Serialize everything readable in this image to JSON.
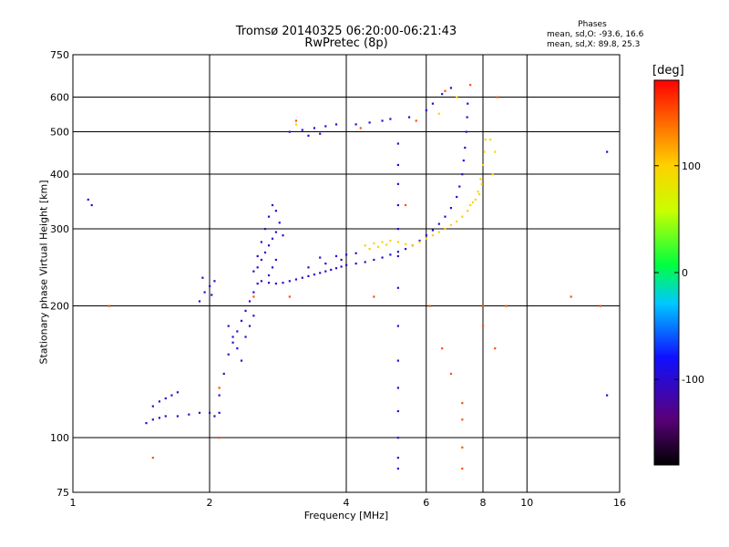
{
  "header": {
    "title_line1": "Tromsø 20140325 06:20:00-06:21:43",
    "title_line2": "RwPretec (8p)"
  },
  "phase_box": {
    "title": "Phases",
    "o_line": "mean, sd,O: -93.6, 16.6",
    "x_line": "mean, sd,X:  89.8, 25.3"
  },
  "colorbar": {
    "unit": "[deg]",
    "min": -180,
    "max": 180,
    "ticks": [
      100,
      0,
      -100
    ],
    "tick_labels": [
      "100",
      "0",
      "-100"
    ]
  },
  "chart_data": {
    "type": "scatter",
    "title": "Tromsø 20140325 06:20:00-06:21:43",
    "subtitle": "RwPretec (8p)",
    "xlabel": "Frequency [MHz]",
    "ylabel": "Stationary phase Virtual Height [km]",
    "x_scale": "log",
    "y_scale": "log",
    "xlim": [
      1,
      16
    ],
    "ylim": [
      75,
      750
    ],
    "x_ticks": [
      1,
      2,
      4,
      6,
      8,
      10,
      16
    ],
    "x_tick_labels": [
      "1",
      "2",
      "4",
      "6",
      "8",
      "10",
      "16"
    ],
    "y_ticks": [
      75,
      100,
      200,
      300,
      400,
      500,
      600,
      750
    ],
    "y_tick_labels": [
      "75",
      "100",
      "200",
      "300",
      "400",
      "500",
      "600",
      "750"
    ],
    "grid": true,
    "series": [
      {
        "values_phase_deg": -100,
        "points": [
          [
            1.45,
            108
          ],
          [
            1.5,
            110
          ],
          [
            1.55,
            111
          ],
          [
            1.6,
            112
          ],
          [
            1.7,
            112
          ],
          [
            1.8,
            113
          ],
          [
            1.9,
            114
          ],
          [
            2.0,
            114
          ],
          [
            2.05,
            112
          ],
          [
            2.1,
            114
          ],
          [
            1.5,
            118
          ],
          [
            1.55,
            121
          ],
          [
            1.6,
            123
          ],
          [
            1.65,
            125
          ],
          [
            1.7,
            127
          ],
          [
            1.9,
            205
          ],
          [
            1.95,
            215
          ],
          [
            2.0,
            222
          ],
          [
            2.05,
            228
          ],
          [
            1.93,
            232
          ],
          [
            2.02,
            212
          ],
          [
            2.1,
            125
          ],
          [
            2.15,
            140
          ],
          [
            2.2,
            155
          ],
          [
            2.25,
            165
          ],
          [
            2.3,
            175
          ],
          [
            2.35,
            185
          ],
          [
            2.4,
            195
          ],
          [
            2.45,
            205
          ],
          [
            2.5,
            215
          ],
          [
            2.55,
            225
          ],
          [
            2.2,
            180
          ],
          [
            2.25,
            170
          ],
          [
            2.3,
            160
          ],
          [
            2.35,
            150
          ],
          [
            2.4,
            170
          ],
          [
            2.45,
            180
          ],
          [
            2.5,
            190
          ],
          [
            2.5,
            240
          ],
          [
            2.55,
            260
          ],
          [
            2.6,
            280
          ],
          [
            2.65,
            300
          ],
          [
            2.7,
            320
          ],
          [
            2.75,
            340
          ],
          [
            2.8,
            330
          ],
          [
            2.85,
            310
          ],
          [
            2.9,
            290
          ],
          [
            2.55,
            245
          ],
          [
            2.6,
            255
          ],
          [
            2.65,
            265
          ],
          [
            2.7,
            275
          ],
          [
            2.75,
            285
          ],
          [
            2.8,
            295
          ],
          [
            2.7,
            235
          ],
          [
            2.75,
            245
          ],
          [
            2.8,
            255
          ],
          [
            2.6,
            228
          ],
          [
            2.7,
            226
          ],
          [
            2.8,
            225
          ],
          [
            2.9,
            226
          ],
          [
            3.0,
            228
          ],
          [
            3.1,
            230
          ],
          [
            3.2,
            232
          ],
          [
            3.3,
            234
          ],
          [
            3.4,
            236
          ],
          [
            3.5,
            238
          ],
          [
            3.6,
            240
          ],
          [
            3.7,
            242
          ],
          [
            3.8,
            244
          ],
          [
            3.9,
            246
          ],
          [
            4.0,
            248
          ],
          [
            4.2,
            250
          ],
          [
            4.4,
            252
          ],
          [
            4.6,
            255
          ],
          [
            4.8,
            258
          ],
          [
            5.0,
            262
          ],
          [
            5.2,
            266
          ],
          [
            5.4,
            270
          ],
          [
            5.6,
            275
          ],
          [
            5.8,
            282
          ],
          [
            6.0,
            290
          ],
          [
            6.2,
            298
          ],
          [
            6.4,
            308
          ],
          [
            6.6,
            320
          ],
          [
            6.8,
            335
          ],
          [
            7.0,
            355
          ],
          [
            7.1,
            375
          ],
          [
            7.2,
            400
          ],
          [
            7.25,
            430
          ],
          [
            7.3,
            460
          ],
          [
            7.35,
            500
          ],
          [
            7.38,
            540
          ],
          [
            7.4,
            580
          ],
          [
            3.5,
            258
          ],
          [
            3.8,
            260
          ],
          [
            4.0,
            262
          ],
          [
            4.2,
            264
          ],
          [
            3.3,
            245
          ],
          [
            3.6,
            250
          ],
          [
            3.9,
            255
          ],
          [
            5.2,
            300
          ],
          [
            5.2,
            260
          ],
          [
            5.2,
            220
          ],
          [
            5.2,
            180
          ],
          [
            5.2,
            150
          ],
          [
            5.2,
            130
          ],
          [
            5.2,
            115
          ],
          [
            5.2,
            100
          ],
          [
            5.2,
            90
          ],
          [
            5.2,
            85
          ],
          [
            5.2,
            340
          ],
          [
            5.2,
            380
          ],
          [
            5.2,
            420
          ],
          [
            5.2,
            470
          ],
          [
            3.0,
            500
          ],
          [
            3.2,
            505
          ],
          [
            3.4,
            510
          ],
          [
            3.6,
            515
          ],
          [
            3.8,
            520
          ],
          [
            3.5,
            495
          ],
          [
            3.3,
            490
          ],
          [
            4.2,
            520
          ],
          [
            4.5,
            525
          ],
          [
            4.8,
            530
          ],
          [
            5.0,
            535
          ],
          [
            5.5,
            540
          ],
          [
            6.0,
            560
          ],
          [
            6.2,
            580
          ],
          [
            6.5,
            610
          ],
          [
            6.8,
            630
          ],
          [
            15.0,
            450
          ],
          [
            15.0,
            125
          ],
          [
            1.08,
            350
          ],
          [
            1.1,
            340
          ]
        ]
      },
      {
        "values_phase_deg": 100,
        "points": [
          [
            4.4,
            275
          ],
          [
            4.6,
            278
          ],
          [
            4.8,
            280
          ],
          [
            5.0,
            282
          ],
          [
            5.2,
            280
          ],
          [
            5.4,
            277
          ],
          [
            5.6,
            275
          ],
          [
            5.8,
            280
          ],
          [
            6.0,
            285
          ],
          [
            6.2,
            290
          ],
          [
            6.4,
            295
          ],
          [
            6.6,
            300
          ],
          [
            6.8,
            306
          ],
          [
            7.0,
            312
          ],
          [
            7.2,
            320
          ],
          [
            7.4,
            330
          ],
          [
            7.6,
            345
          ],
          [
            7.8,
            365
          ],
          [
            7.9,
            390
          ],
          [
            8.0,
            420
          ],
          [
            8.05,
            450
          ],
          [
            8.1,
            480
          ],
          [
            7.95,
            380
          ],
          [
            7.85,
            360
          ],
          [
            7.7,
            350
          ],
          [
            7.5,
            340
          ],
          [
            4.5,
            270
          ],
          [
            4.7,
            273
          ],
          [
            4.9,
            276
          ],
          [
            3.1,
            520
          ],
          [
            6.4,
            550
          ],
          [
            7.0,
            600
          ],
          [
            8.3,
            480
          ],
          [
            8.4,
            400
          ],
          [
            8.5,
            450
          ]
        ]
      },
      {
        "values_phase_deg": 150,
        "points": [
          [
            1.5,
            90
          ],
          [
            2.1,
            100
          ],
          [
            2.5,
            210
          ],
          [
            3.0,
            210
          ],
          [
            4.6,
            210
          ],
          [
            5.4,
            340
          ],
          [
            6.1,
            200
          ],
          [
            6.5,
            160
          ],
          [
            6.8,
            140
          ],
          [
            7.2,
            120
          ],
          [
            7.2,
            110
          ],
          [
            7.2,
            95
          ],
          [
            7.2,
            85
          ],
          [
            8.0,
            200
          ],
          [
            8.0,
            180
          ],
          [
            8.5,
            160
          ],
          [
            9.0,
            200
          ],
          [
            8.6,
            600
          ],
          [
            7.5,
            640
          ],
          [
            6.6,
            620
          ],
          [
            1.2,
            200
          ],
          [
            12.5,
            210
          ],
          [
            14.5,
            200
          ],
          [
            2.1,
            130
          ],
          [
            3.1,
            530
          ],
          [
            4.3,
            510
          ],
          [
            5.7,
            530
          ]
        ]
      }
    ]
  }
}
